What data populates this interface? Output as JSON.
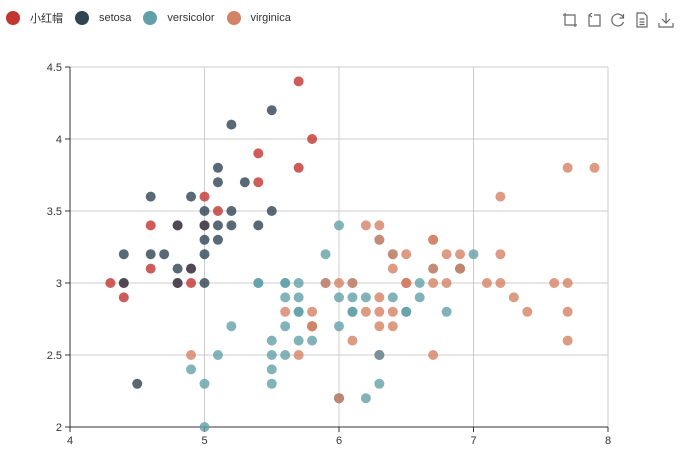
{
  "legend": [
    {
      "name": "小红帽",
      "color": "#c23531"
    },
    {
      "name": "setosa",
      "color": "#2f4554"
    },
    {
      "name": "versicolor",
      "color": "#61a0a8"
    },
    {
      "name": "virginica",
      "color": "#d48265"
    }
  ],
  "toolbox": [
    {
      "icon": "zoom-icon"
    },
    {
      "icon": "zoom-reset-icon"
    },
    {
      "icon": "restore-icon"
    },
    {
      "icon": "data-view-icon"
    },
    {
      "icon": "save-image-icon"
    }
  ],
  "chart_data": {
    "type": "scatter",
    "title": "",
    "xlabel": "",
    "ylabel": "",
    "xlim": [
      4,
      8
    ],
    "ylim": [
      2,
      4.5
    ],
    "xticks": [
      "4",
      "5",
      "6",
      "7",
      "8"
    ],
    "yticks": [
      "2",
      "2.5",
      "3",
      "3.5",
      "4",
      "4.5"
    ],
    "grid": true,
    "legend_position": "top-left",
    "series": [
      {
        "name": "小红帽",
        "color": "#c23531",
        "points": [
          [
            5.7,
            4.4
          ],
          [
            5.8,
            4.0
          ],
          [
            5.4,
            3.9
          ],
          [
            5.7,
            3.8
          ],
          [
            5.4,
            3.7
          ],
          [
            5.0,
            3.6
          ],
          [
            5.1,
            3.5
          ],
          [
            4.6,
            3.4
          ],
          [
            5.0,
            3.4
          ],
          [
            4.8,
            3.4
          ],
          [
            4.6,
            3.1
          ],
          [
            4.3,
            3.0
          ],
          [
            4.4,
            2.9
          ],
          [
            4.9,
            3.1
          ],
          [
            4.9,
            3.0
          ],
          [
            4.8,
            3.0
          ],
          [
            6.9,
            3.1
          ],
          [
            5.8,
            2.7
          ],
          [
            6.3,
            2.5
          ],
          [
            6.5,
            3.0
          ],
          [
            4.4,
            3.0
          ]
        ]
      },
      {
        "name": "setosa",
        "color": "#2f4554",
        "points": [
          [
            5.5,
            4.2
          ],
          [
            5.2,
            4.1
          ],
          [
            5.1,
            3.8
          ],
          [
            5.1,
            3.7
          ],
          [
            5.3,
            3.7
          ],
          [
            4.6,
            3.6
          ],
          [
            4.9,
            3.6
          ],
          [
            5.0,
            3.5
          ],
          [
            5.2,
            3.5
          ],
          [
            5.5,
            3.5
          ],
          [
            4.8,
            3.4
          ],
          [
            5.0,
            3.4
          ],
          [
            5.1,
            3.4
          ],
          [
            5.2,
            3.4
          ],
          [
            5.4,
            3.4
          ],
          [
            5.0,
            3.3
          ],
          [
            5.1,
            3.3
          ],
          [
            5.0,
            3.2
          ],
          [
            4.4,
            3.2
          ],
          [
            4.6,
            3.2
          ],
          [
            4.7,
            3.2
          ],
          [
            4.8,
            3.1
          ],
          [
            4.9,
            3.1
          ],
          [
            5.0,
            3.0
          ],
          [
            4.4,
            3.0
          ],
          [
            4.8,
            3.0
          ],
          [
            4.5,
            2.3
          ],
          [
            6.0,
            2.2
          ]
        ]
      },
      {
        "name": "versicolor",
        "color": "#61a0a8",
        "points": [
          [
            7.0,
            3.2
          ],
          [
            6.4,
            3.2
          ],
          [
            6.9,
            3.1
          ],
          [
            5.5,
            2.3
          ],
          [
            6.5,
            2.8
          ],
          [
            5.7,
            2.8
          ],
          [
            6.3,
            3.3
          ],
          [
            4.9,
            2.4
          ],
          [
            6.6,
            2.9
          ],
          [
            5.2,
            2.7
          ],
          [
            5.0,
            2.0
          ],
          [
            5.9,
            3.0
          ],
          [
            6.0,
            2.2
          ],
          [
            6.1,
            2.9
          ],
          [
            5.6,
            2.9
          ],
          [
            6.7,
            3.1
          ],
          [
            5.6,
            3.0
          ],
          [
            5.8,
            2.7
          ],
          [
            6.2,
            2.2
          ],
          [
            5.6,
            2.5
          ],
          [
            5.9,
            3.2
          ],
          [
            6.1,
            2.8
          ],
          [
            6.3,
            2.5
          ],
          [
            6.6,
            3.0
          ],
          [
            6.8,
            2.8
          ],
          [
            6.0,
            2.9
          ],
          [
            5.7,
            2.6
          ],
          [
            5.5,
            2.4
          ],
          [
            5.5,
            2.5
          ],
          [
            6.0,
            2.7
          ],
          [
            5.4,
            3.0
          ],
          [
            6.0,
            3.4
          ],
          [
            6.3,
            2.3
          ],
          [
            5.6,
            3.0
          ],
          [
            5.5,
            2.6
          ],
          [
            6.1,
            3.0
          ],
          [
            5.8,
            2.6
          ],
          [
            5.0,
            2.3
          ],
          [
            5.6,
            2.7
          ],
          [
            5.7,
            3.0
          ],
          [
            5.7,
            2.9
          ],
          [
            6.2,
            2.9
          ],
          [
            5.1,
            2.5
          ],
          [
            5.4,
            3.0
          ],
          [
            6.1,
            2.8
          ],
          [
            6.5,
            2.8
          ],
          [
            5.7,
            2.8
          ],
          [
            6.4,
            2.9
          ]
        ]
      },
      {
        "name": "virginica",
        "color": "#d48265",
        "points": [
          [
            6.3,
            3.3
          ],
          [
            5.8,
            2.7
          ],
          [
            7.1,
            3.0
          ],
          [
            6.3,
            2.9
          ],
          [
            6.5,
            3.0
          ],
          [
            7.6,
            3.0
          ],
          [
            4.9,
            2.5
          ],
          [
            7.3,
            2.9
          ],
          [
            6.7,
            2.5
          ],
          [
            7.2,
            3.6
          ],
          [
            6.5,
            3.2
          ],
          [
            6.4,
            2.7
          ],
          [
            6.8,
            3.0
          ],
          [
            5.7,
            2.5
          ],
          [
            5.8,
            2.8
          ],
          [
            6.4,
            3.2
          ],
          [
            7.7,
            3.8
          ],
          [
            7.7,
            2.6
          ],
          [
            6.0,
            2.2
          ],
          [
            6.9,
            3.2
          ],
          [
            5.6,
            2.8
          ],
          [
            7.7,
            2.8
          ],
          [
            6.7,
            3.3
          ],
          [
            7.2,
            3.2
          ],
          [
            6.2,
            2.8
          ],
          [
            6.1,
            3.0
          ],
          [
            6.4,
            2.8
          ],
          [
            7.2,
            3.0
          ],
          [
            7.4,
            2.8
          ],
          [
            7.9,
            3.8
          ],
          [
            6.3,
            2.8
          ],
          [
            6.1,
            2.6
          ],
          [
            7.7,
            3.0
          ],
          [
            6.3,
            3.4
          ],
          [
            6.4,
            3.1
          ],
          [
            6.0,
            3.0
          ],
          [
            6.7,
            3.1
          ],
          [
            5.9,
            3.0
          ],
          [
            6.2,
            3.4
          ],
          [
            6.3,
            2.7
          ],
          [
            6.5,
            3.0
          ],
          [
            6.7,
            3.0
          ],
          [
            6.9,
            3.1
          ],
          [
            5.8,
            2.7
          ],
          [
            6.8,
            3.2
          ],
          [
            6.7,
            3.3
          ]
        ]
      }
    ]
  }
}
